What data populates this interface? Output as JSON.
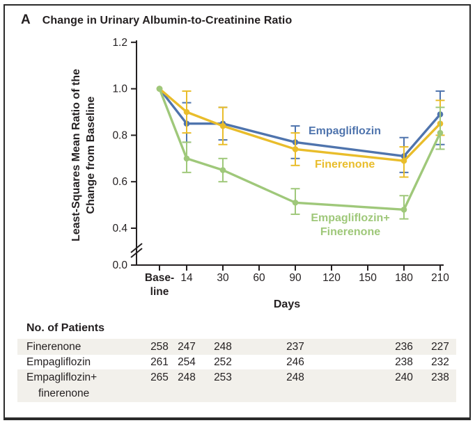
{
  "figure": {
    "panel_letter": "A",
    "title": "Change in Urinary Albumin-to-Creatinine Ratio"
  },
  "chart_data": {
    "type": "line",
    "title": "Change in Urinary Albumin-to-Creatinine Ratio",
    "xlabel": "Days",
    "ylabel": "Least-Squares Mean Ratio of the Change from Baseline",
    "ylabel_lines": [
      "Least-Squares Mean Ratio of the",
      "Change from Baseline"
    ],
    "y_axis": {
      "ticks": [
        "1.2",
        "1.0",
        "0.8",
        "0.6",
        "0.4",
        "0.0"
      ],
      "range_shown": [
        0.4,
        1.2
      ],
      "axis_break_between": [
        0.0,
        0.4
      ],
      "grid": false
    },
    "x_axis": {
      "tick_labels": [
        [
          "Base-",
          "line"
        ],
        [
          "14"
        ],
        [
          "30"
        ],
        [
          "60"
        ],
        [
          "90"
        ],
        [
          "120"
        ],
        [
          "150"
        ],
        [
          "180"
        ],
        [
          "210"
        ]
      ],
      "data_tick_indices": [
        0,
        1,
        2,
        4,
        7,
        8
      ]
    },
    "categories": [
      "Baseline",
      "14",
      "30",
      "90",
      "180",
      "210"
    ],
    "legend_position": "inline-annotations",
    "error_bars": "shown",
    "series": [
      {
        "name": "Empagliflozin",
        "label_lines": [
          "Empagliflozin"
        ],
        "color": "#4f74ad",
        "values": [
          1.0,
          0.85,
          0.85,
          0.77,
          0.71,
          0.89
        ],
        "err_lo": [
          null,
          0.77,
          0.78,
          0.7,
          0.64,
          0.76
        ],
        "err_hi": [
          null,
          0.94,
          0.92,
          0.84,
          0.79,
          0.99
        ]
      },
      {
        "name": "Finerenone",
        "label_lines": [
          "Finerenone"
        ],
        "color": "#e9bd2b",
        "values": [
          1.0,
          0.9,
          0.84,
          0.74,
          0.69,
          0.85
        ],
        "err_lo": [
          null,
          0.81,
          0.76,
          0.67,
          0.62,
          0.8
        ],
        "err_hi": [
          null,
          0.99,
          0.92,
          0.81,
          0.75,
          0.95
        ]
      },
      {
        "name": "Empagliflozin+Finerenone",
        "label_lines": [
          "Empagliflozin+",
          "Finerenone"
        ],
        "color": "#9fc87a",
        "values": [
          1.0,
          0.7,
          0.65,
          0.51,
          0.48,
          0.81
        ],
        "err_lo": [
          null,
          0.64,
          0.6,
          0.46,
          0.44,
          0.74
        ],
        "err_hi": [
          null,
          0.77,
          0.7,
          0.57,
          0.54,
          0.92
        ]
      }
    ]
  },
  "patients_table": {
    "header": "No. of Patients",
    "columns": [
      "Baseline",
      "14",
      "30",
      "90",
      "180",
      "210"
    ],
    "rows": [
      {
        "label": "Finerenone",
        "label_line2": "",
        "values": [
          "258",
          "247",
          "248",
          "237",
          "236",
          "227"
        ],
        "shaded": true
      },
      {
        "label": "Empagliflozin",
        "label_line2": "",
        "values": [
          "261",
          "254",
          "252",
          "246",
          "238",
          "232"
        ],
        "shaded": false
      },
      {
        "label": "Empagliflozin+",
        "label_line2": "finerenone",
        "values": [
          "265",
          "248",
          "253",
          "248",
          "240",
          "238"
        ],
        "shaded": true
      }
    ]
  }
}
